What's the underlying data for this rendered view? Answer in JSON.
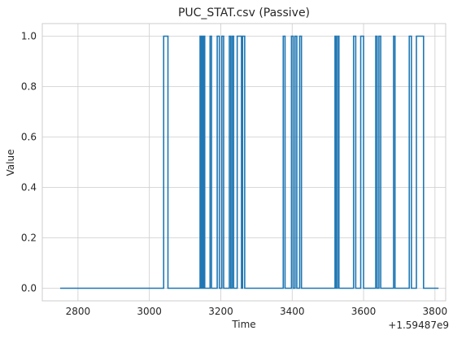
{
  "chart_data": {
    "type": "line",
    "title": "PUC_STAT.csv (Passive)",
    "xlabel": "Time",
    "ylabel": "Value",
    "x_offset_label": "+1.59487e9",
    "xlim": [
      2700,
      3830
    ],
    "ylim": [
      -0.05,
      1.05
    ],
    "x_ticks": [
      2800,
      3000,
      3200,
      3400,
      3600,
      3800
    ],
    "x_tick_labels": [
      "2800",
      "3000",
      "3200",
      "3400",
      "3600",
      "3800"
    ],
    "y_ticks": [
      0.0,
      0.2,
      0.4,
      0.6,
      0.8,
      1.0
    ],
    "y_tick_labels": [
      "0.0",
      "0.2",
      "0.4",
      "0.6",
      "0.8",
      "1.0"
    ],
    "grid": true,
    "line_color": "#1f77b4",
    "step": true,
    "x": [
      2750,
      3040,
      3052,
      3142,
      3145,
      3147,
      3150,
      3152,
      3155,
      3170,
      3174,
      3190,
      3196,
      3203,
      3208,
      3224,
      3228,
      3232,
      3236,
      3246,
      3258,
      3261,
      3267,
      3375,
      3380,
      3398,
      3403,
      3408,
      3413,
      3421,
      3426,
      3520,
      3523,
      3527,
      3531,
      3572,
      3578,
      3592,
      3600,
      3634,
      3638,
      3643,
      3648,
      3684,
      3688,
      3728,
      3734,
      3748,
      3768,
      3810
    ],
    "y": [
      0,
      1,
      0,
      1,
      0,
      1,
      0,
      1,
      0,
      1,
      0,
      1,
      0,
      1,
      0,
      1,
      0,
      1,
      0,
      1,
      0,
      1,
      0,
      1,
      0,
      1,
      0,
      1,
      0,
      1,
      0,
      1,
      0,
      1,
      0,
      1,
      0,
      1,
      0,
      1,
      0,
      1,
      0,
      1,
      0,
      1,
      0,
      1,
      0,
      0
    ]
  }
}
